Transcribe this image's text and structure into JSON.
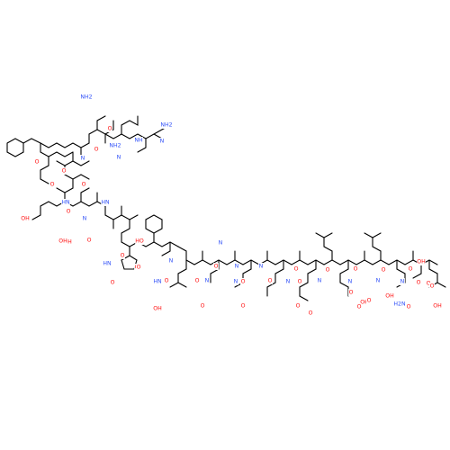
{
  "colors": {
    "background": "#ffffff",
    "bond": "#000000",
    "oxygen": "#ff0d0d",
    "nitrogen": "#3050f8",
    "carbon": "#000000"
  },
  "labels": [
    {
      "text": "O",
      "element": "O"
    },
    {
      "text": "NH2",
      "element": "N"
    },
    {
      "text": "O",
      "element": "O"
    },
    {
      "text": "NH2",
      "element": "N"
    },
    {
      "text": "NH2",
      "element": "N"
    },
    {
      "text": "NH",
      "element": "N"
    },
    {
      "text": "N",
      "element": "N"
    },
    {
      "text": "N",
      "element": "N"
    },
    {
      "text": "N",
      "element": "N"
    },
    {
      "text": "O",
      "element": "O"
    },
    {
      "text": "O",
      "element": "O"
    },
    {
      "text": "O",
      "element": "O"
    },
    {
      "text": "O",
      "element": "O"
    },
    {
      "text": "OH",
      "element": "O"
    },
    {
      "text": "HN",
      "element": "N"
    },
    {
      "text": "HN",
      "element": "N"
    },
    {
      "text": "O",
      "element": "O"
    },
    {
      "text": "OH",
      "element": "O"
    },
    {
      "text": "O",
      "element": "O"
    },
    {
      "text": "N",
      "element": "N"
    },
    {
      "text": "O",
      "element": "O"
    },
    {
      "text": "OH",
      "element": "O"
    },
    {
      "text": "HN",
      "element": "N"
    },
    {
      "text": "O",
      "element": "O"
    },
    {
      "text": "O",
      "element": "O"
    },
    {
      "text": "N",
      "element": "N"
    },
    {
      "text": "HO",
      "element": "O"
    },
    {
      "text": "O",
      "element": "O"
    },
    {
      "text": "HN",
      "element": "N"
    },
    {
      "text": "O",
      "element": "O"
    },
    {
      "text": "N",
      "element": "N"
    },
    {
      "text": "O",
      "element": "O"
    },
    {
      "text": "O",
      "element": "O"
    },
    {
      "text": "N",
      "element": "N"
    },
    {
      "text": "O",
      "element": "O"
    },
    {
      "text": "N",
      "element": "N"
    },
    {
      "text": "O",
      "element": "O"
    },
    {
      "text": "N",
      "element": "N"
    },
    {
      "text": "O",
      "element": "O"
    },
    {
      "text": "N",
      "element": "N"
    },
    {
      "text": "O",
      "element": "O"
    },
    {
      "text": "N",
      "element": "N"
    },
    {
      "text": "O",
      "element": "O"
    },
    {
      "text": "N",
      "element": "N"
    },
    {
      "text": "O",
      "element": "O"
    },
    {
      "text": "N",
      "element": "N"
    },
    {
      "text": "O",
      "element": "O"
    },
    {
      "text": "N",
      "element": "N"
    },
    {
      "text": "O",
      "element": "O"
    },
    {
      "text": "N",
      "element": "N"
    },
    {
      "text": "O",
      "element": "O"
    },
    {
      "text": "N",
      "element": "N"
    },
    {
      "text": "O",
      "element": "O"
    },
    {
      "text": "O",
      "element": "O"
    },
    {
      "text": "OH",
      "element": "O"
    },
    {
      "text": "O",
      "element": "O"
    },
    {
      "text": "O",
      "element": "O"
    },
    {
      "text": "OH",
      "element": "O"
    },
    {
      "text": "O",
      "element": "O"
    },
    {
      "text": "O",
      "element": "O"
    },
    {
      "text": "OH",
      "element": "O"
    },
    {
      "text": "O",
      "element": "O"
    },
    {
      "text": "H2N",
      "element": "N"
    },
    {
      "text": "OH",
      "element": "O"
    },
    {
      "text": "O",
      "element": "O"
    },
    {
      "text": "O",
      "element": "O"
    },
    {
      "text": "OH",
      "element": "O"
    },
    {
      "text": "O",
      "element": "O"
    }
  ]
}
